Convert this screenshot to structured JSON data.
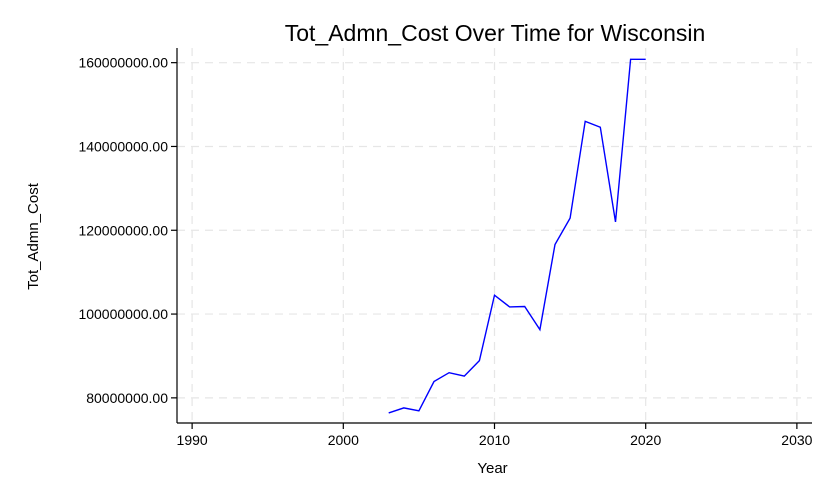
{
  "chart_data": {
    "type": "line",
    "title": "Tot_Admn_Cost Over Time for Wisconsin",
    "xlabel": "Year",
    "ylabel": "Tot_Admn_Cost",
    "xlim": [
      1989,
      2031
    ],
    "ylim": [
      74000000,
      163500000
    ],
    "x_ticks": [
      1990,
      2000,
      2010,
      2020,
      2030
    ],
    "y_ticks": [
      80000000,
      100000000,
      120000000,
      140000000,
      160000000
    ],
    "y_tick_labels": [
      "80000000.00",
      "100000000.00",
      "120000000.00",
      "140000000.00",
      "160000000.00"
    ],
    "grid": true,
    "series": [
      {
        "color": "#0000ff",
        "x": [
          2003,
          2004,
          2005,
          2006,
          2007,
          2008,
          2009,
          2010,
          2011,
          2012,
          2013,
          2014,
          2015,
          2016,
          2017,
          2018,
          2019,
          2020
        ],
        "y": [
          76400000,
          77600000,
          76900000,
          83900000,
          86000000,
          85200000,
          88900000,
          104500000,
          101700000,
          101800000,
          96300000,
          116600000,
          122900000,
          146000000,
          144600000,
          122000000,
          160800000,
          160800000
        ]
      }
    ]
  }
}
